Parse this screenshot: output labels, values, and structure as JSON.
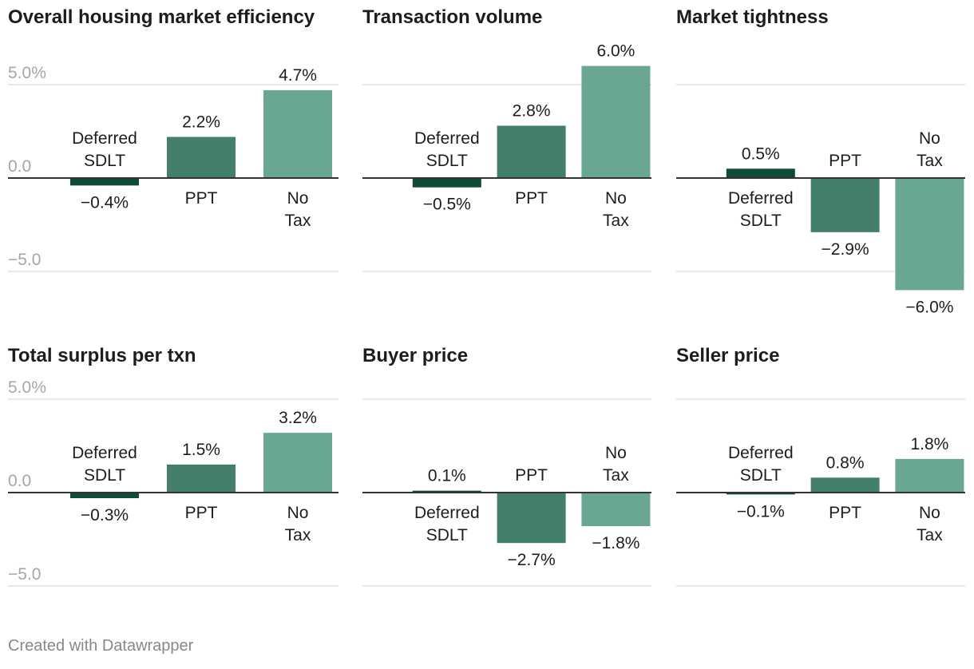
{
  "chart_data": [
    {
      "type": "bar",
      "title": "Overall housing market efficiency",
      "categories": [
        "Deferred SDLT",
        "PPT",
        "No Tax"
      ],
      "values": [
        -0.4,
        2.2,
        4.7
      ],
      "value_labels": [
        "−0.4%",
        "2.2%",
        "4.7%"
      ],
      "y_ticks": [
        5,
        0,
        -5
      ],
      "y_tick_labels": [
        "5.0%",
        "0.0",
        "−5.0"
      ],
      "ylim": [
        -5,
        5
      ],
      "grid": true
    },
    {
      "type": "bar",
      "title": "Transaction volume",
      "categories": [
        "Deferred SDLT",
        "PPT",
        "No Tax"
      ],
      "values": [
        -0.5,
        2.8,
        6.0
      ],
      "value_labels": [
        "−0.5%",
        "2.8%",
        "6.0%"
      ],
      "y_ticks": [
        5,
        0,
        -5
      ],
      "ylim": [
        -5,
        5
      ],
      "grid": true
    },
    {
      "type": "bar",
      "title": "Market tightness",
      "categories": [
        "Deferred SDLT",
        "PPT",
        "No Tax"
      ],
      "values": [
        0.5,
        -2.9,
        -6.0
      ],
      "value_labels": [
        "0.5%",
        "−2.9%",
        "−6.0%"
      ],
      "y_ticks": [
        5,
        0,
        -5
      ],
      "ylim": [
        -5,
        5
      ],
      "grid": true
    },
    {
      "type": "bar",
      "title": "Total surplus per txn",
      "categories": [
        "Deferred SDLT",
        "PPT",
        "No Tax"
      ],
      "values": [
        -0.3,
        1.5,
        3.2
      ],
      "value_labels": [
        "−0.3%",
        "1.5%",
        "3.2%"
      ],
      "y_ticks": [
        5,
        0,
        -5
      ],
      "y_tick_labels": [
        "5.0%",
        "0.0",
        "−5.0"
      ],
      "ylim": [
        -5,
        5
      ],
      "grid": true
    },
    {
      "type": "bar",
      "title": "Buyer price",
      "categories": [
        "Deferred SDLT",
        "PPT",
        "No Tax"
      ],
      "values": [
        0.1,
        -2.7,
        -1.8
      ],
      "value_labels": [
        "0.1%",
        "−2.7%",
        "−1.8%"
      ],
      "y_ticks": [
        5,
        0,
        -5
      ],
      "ylim": [
        -5,
        5
      ],
      "grid": true
    },
    {
      "type": "bar",
      "title": "Seller price",
      "categories": [
        "Deferred SDLT",
        "PPT",
        "No Tax"
      ],
      "values": [
        -0.1,
        0.8,
        1.8
      ],
      "value_labels": [
        "−0.1%",
        "0.8%",
        "1.8%"
      ],
      "y_ticks": [
        5,
        0,
        -5
      ],
      "ylim": [
        -5,
        5
      ],
      "grid": true
    }
  ],
  "colors": {
    "series": [
      "#0e4c38",
      "#447f6a",
      "#6aa790"
    ],
    "grid": "#e2e2e2",
    "axis": "#333333",
    "tick_text": "#a6a6a6",
    "text": "#1d1d1d"
  },
  "footer": "Created with Datawrapper"
}
